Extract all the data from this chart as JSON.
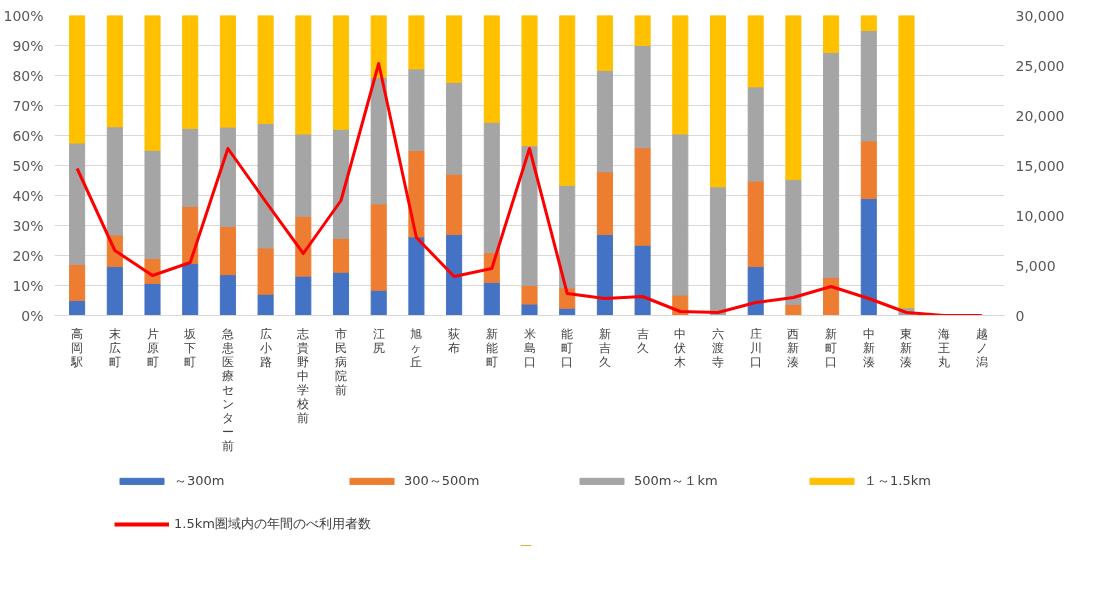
{
  "chart_data": {
    "type": "bar",
    "stacked": true,
    "categories": [
      "高岡駅",
      "末広町",
      "片原町",
      "坂下町",
      "急患医療センター前",
      "広小路",
      "志貴野中学校前",
      "市民病院前",
      "江尻",
      "旭ヶ丘",
      "荻布",
      "新能町",
      "米島口",
      "能町口",
      "新吉久",
      "吉久",
      "中伏木",
      "六渡寺",
      "庄川口",
      "西新湊",
      "新町口",
      "中新湊",
      "東新湊",
      "海王丸",
      "越ノ潟"
    ],
    "series": [
      {
        "name": "～300m",
        "color": "#4472c4",
        "values": [
          5,
          16.3,
          10.7,
          17.3,
          13.6,
          7.1,
          13.1,
          14.4,
          8.4,
          26.2,
          27,
          11,
          3.8,
          2.4,
          27,
          23.4,
          0,
          0,
          16.3,
          0,
          0,
          39,
          0,
          null,
          null
        ]
      },
      {
        "name": "300～500m",
        "color": "#ed7d31",
        "values": [
          12,
          10.5,
          8.3,
          19.1,
          16.1,
          15.4,
          20,
          11.3,
          28.8,
          28.8,
          20.1,
          9.9,
          6.2,
          6.8,
          20.9,
          32.5,
          6.8,
          0,
          28.5,
          3.7,
          12.7,
          19.2,
          0,
          null,
          null
        ]
      },
      {
        "name": "500m～１km",
        "color": "#a5a5a5",
        "values": [
          40.5,
          36.1,
          36.1,
          26,
          33.1,
          41.5,
          27.4,
          36.4,
          42.1,
          27.2,
          30.6,
          43.5,
          46.6,
          34.2,
          33.8,
          34.1,
          53.7,
          42.9,
          31.4,
          41.6,
          75,
          36.8,
          2.6,
          null,
          null
        ]
      },
      {
        "name": "１～1.5km",
        "color": "#ffc000",
        "values": [
          42.5,
          37.1,
          44.9,
          37.6,
          37.2,
          36,
          39.5,
          37.9,
          20.7,
          17.8,
          22.3,
          35.6,
          43.4,
          56.6,
          18.3,
          10,
          39.5,
          57.1,
          23.8,
          54.7,
          12.3,
          5,
          97.4,
          null,
          null
        ]
      },
      {
        "name": "1.5km圏域内の年間のべ利用者数",
        "color": "#ff0000",
        "type": "line",
        "axis": "y2",
        "values": [
          14700,
          6500,
          4000,
          5300,
          16700,
          11400,
          6200,
          11500,
          25200,
          7800,
          3900,
          4700,
          16700,
          2200,
          1700,
          1900,
          400,
          300,
          1300,
          1800,
          2900,
          1700,
          300,
          0,
          0
        ]
      }
    ],
    "ylim": [
      0,
      100
    ],
    "yticks": [
      {
        "value": 0,
        "label": "0%"
      },
      {
        "value": 10,
        "label": "10%"
      },
      {
        "value": 20,
        "label": "20%"
      },
      {
        "value": 30,
        "label": "30%"
      },
      {
        "value": 40,
        "label": "40%"
      },
      {
        "value": 50,
        "label": "50%"
      },
      {
        "value": 60,
        "label": "60%"
      },
      {
        "value": 70,
        "label": "70%"
      },
      {
        "value": 80,
        "label": "80%"
      },
      {
        "value": 90,
        "label": "90%"
      },
      {
        "value": 100,
        "label": "100%"
      }
    ],
    "y2lim": [
      0,
      30000
    ],
    "y2ticks": [
      {
        "value": 0,
        "label": "0"
      },
      {
        "value": 5000,
        "label": "5,000"
      },
      {
        "value": 10000,
        "label": "10,000"
      },
      {
        "value": 15000,
        "label": "15,000"
      },
      {
        "value": 20000,
        "label": "20,000"
      },
      {
        "value": 25000,
        "label": "25,000"
      },
      {
        "value": 30000,
        "label": "30,000"
      }
    ],
    "grid": "y",
    "legend": "bottom"
  }
}
